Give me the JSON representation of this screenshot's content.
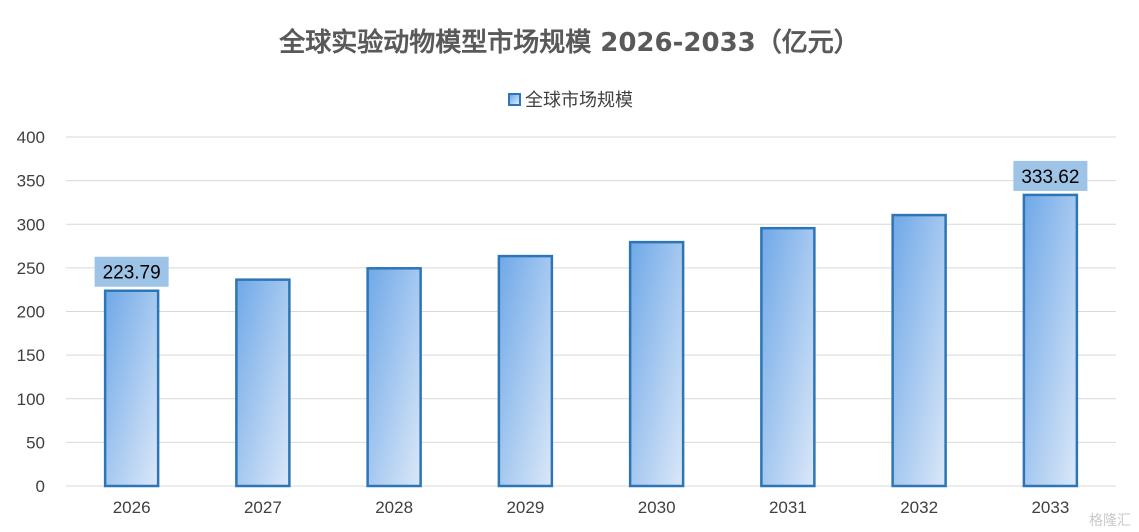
{
  "chart_data": {
    "type": "bar",
    "title": "全球实验动物模型市场规模 2026-2033（亿元）",
    "categories": [
      "2026",
      "2027",
      "2028",
      "2029",
      "2030",
      "2031",
      "2032",
      "2033"
    ],
    "series": [
      {
        "name": "全球市场规模",
        "values": [
          223.79,
          236.5,
          249.5,
          263.5,
          279.5,
          295.5,
          310.5,
          333.62
        ]
      }
    ],
    "data_labels": [
      {
        "category": "2026",
        "text": "223.79"
      },
      {
        "category": "2033",
        "text": "333.62"
      }
    ],
    "ylim": [
      0,
      400
    ],
    "yticks": [
      0,
      50,
      100,
      150,
      200,
      250,
      300,
      350,
      400
    ],
    "grid": true,
    "legend_position": "top-center",
    "colors": {
      "bar_border": "#2e75b6",
      "bar_fill_start": "#6fa8e8",
      "bar_fill_end": "#dbe8f8",
      "data_label_bg": "#9dc3e6",
      "grid": "#d9d9d9"
    }
  },
  "watermark": "格隆汇"
}
